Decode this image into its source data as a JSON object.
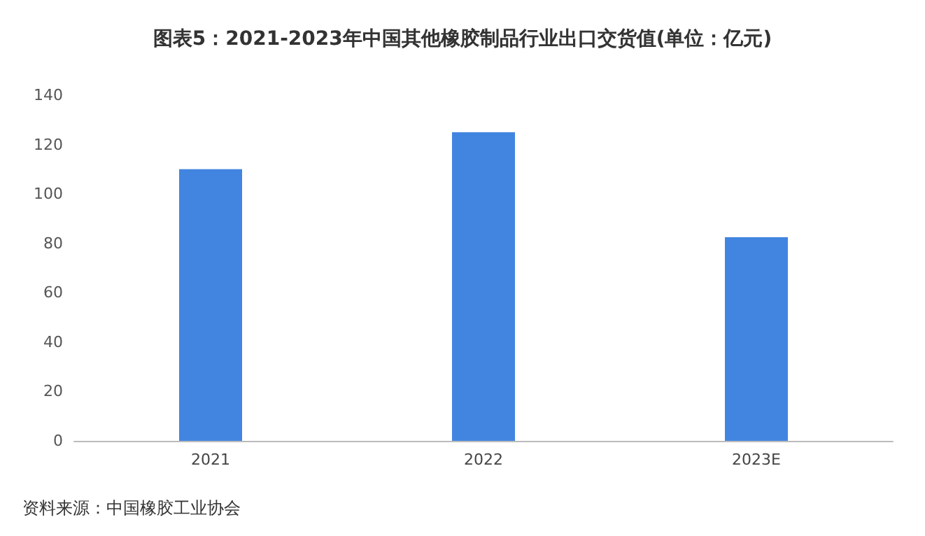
{
  "chart_data": {
    "type": "bar",
    "title": "图表5：2021-2023年中国其他橡胶制品行业出口交货值(单位：亿元)",
    "categories": [
      "2021",
      "2022",
      "2023E"
    ],
    "values": [
      110,
      125,
      82.5
    ],
    "color": "#4285e0",
    "ylim": [
      0,
      140
    ],
    "yticks": [
      0,
      20,
      40,
      60,
      80,
      100,
      120,
      140
    ],
    "grid": false,
    "annotations": [
      "资料来源：中国橡胶工业协会"
    ]
  }
}
